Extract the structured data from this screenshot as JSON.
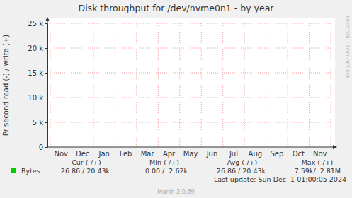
{
  "chart_data": {
    "type": "line",
    "title": "Disk throughput for /dev/nvme0n1 - by year",
    "y_label": "Pr second read (-) / write (+)",
    "categories": [
      "Nov",
      "Dec",
      "Jan",
      "Feb",
      "Mar",
      "Apr",
      "May",
      "Jun",
      "Jul",
      "Aug",
      "Sep",
      "Oct",
      "Nov"
    ],
    "series": [
      {
        "name": "Bytes",
        "color": "#00cc00",
        "values": [
          null,
          null,
          null,
          null,
          null,
          null,
          null,
          null,
          null,
          null,
          null,
          null,
          null
        ]
      }
    ],
    "ylim": [
      0,
      25000
    ],
    "yticks": [
      0,
      {
        "value": 5000,
        "label": "5 k"
      },
      {
        "value": 10000,
        "label": "10 k"
      },
      {
        "value": 15000,
        "label": "15 k"
      },
      {
        "value": 20000,
        "label": "20 k"
      },
      {
        "value": 25000,
        "label": "25 k"
      }
    ],
    "grid": true,
    "stats": {
      "headers": [
        "Cur (-/+)",
        "Min (-/+)",
        "Avg (-/+)",
        "Max (-/+)"
      ],
      "values": [
        "26.86 / 20.43k",
        "0.00 /  2.62k",
        "26.86 / 20.43k",
        "7.59k/  2.81M"
      ]
    },
    "annotations": [
      "Last update: Sun Dec  1 01:00:05 2024",
      "Munin 2.0.69",
      "RRDTOOL / TOBI OETIKER"
    ]
  }
}
